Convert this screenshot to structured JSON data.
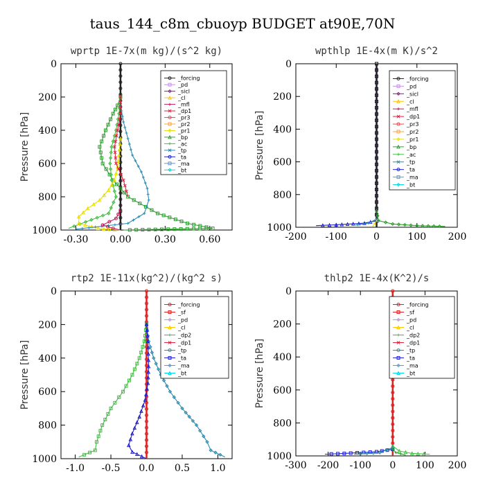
{
  "title": "taus_144_c8m_cbuoyp  BUDGET at90E,70N",
  "colors": {
    "forcing": "#222222",
    "pd": "#c490ea",
    "sicl": "#8a1a8a",
    "cl": "#ffc300",
    "mfl": "#c2185b",
    "dp1": "#e0203a",
    "pr3": "#ff4040",
    "pr2": "#ffa040",
    "pr1": "#e8e000",
    "bp": "#2e9e2e",
    "ac": "#40c040",
    "tp": "#2a8ab0",
    "ta": "#2020d0",
    "ma": "#5599dd",
    "bt": "#00d8e8",
    "sf": "#dd2020",
    "dp2": "#44bb44",
    "forcing_red": "#e02020"
  },
  "chart_data": [
    {
      "type": "line",
      "title": "wprtp   1E-7x(m kg)/(s^2 kg)",
      "ylabel": "Pressure [hPa]",
      "xlim": [
        -0.4,
        0.75
      ],
      "ylim": [
        1000,
        0
      ],
      "xticks": [
        -0.3,
        0.0,
        0.3,
        0.6
      ],
      "xticklabels": [
        "-0.30",
        "0.00",
        "0.30",
        "0.60"
      ],
      "yticks": [
        0,
        200,
        400,
        600,
        800,
        1000
      ],
      "yticklabels": [
        "0",
        "200",
        "400",
        "600",
        "800",
        "1000"
      ],
      "legend_position": "top-right",
      "legend": [
        "_forcing",
        "_pd",
        "_sicl",
        "_cl",
        "_mfl",
        "_dp1",
        "_pr3",
        "_pr2",
        "_pr1",
        "_bp",
        "_ac",
        "_tp",
        "_ta",
        "_ma",
        "_bt"
      ],
      "series": [
        {
          "name": "_forcing",
          "color": "forcing",
          "x": [
            0.0,
            0.0
          ],
          "y": [
            0,
            1000
          ]
        },
        {
          "name": "_ac",
          "color": "bp",
          "x": [
            0.0,
            -0.02,
            -0.05,
            -0.1,
            -0.14,
            -0.12,
            -0.05,
            0.05,
            0.25,
            0.45,
            0.62,
            0.02
          ],
          "y": [
            200,
            250,
            300,
            400,
            500,
            600,
            700,
            800,
            900,
            960,
            990,
            1000
          ]
        },
        {
          "name": "_bp",
          "color": "ac",
          "x": [
            0.0,
            -0.01,
            -0.03,
            -0.06,
            -0.07,
            -0.06,
            -0.03,
            -0.08,
            -0.35
          ],
          "y": [
            200,
            300,
            400,
            500,
            600,
            700,
            800,
            900,
            990
          ]
        },
        {
          "name": "_pr1",
          "color": "pr1",
          "x": [
            0.0,
            -0.01,
            -0.02,
            -0.04,
            -0.08,
            -0.14,
            -0.22,
            -0.28,
            -0.28,
            -0.15,
            0.0
          ],
          "y": [
            450,
            550,
            620,
            700,
            760,
            820,
            870,
            920,
            960,
            990,
            1000
          ]
        },
        {
          "name": "_tp",
          "color": "tp",
          "x": [
            0.0,
            0.02,
            0.05,
            0.08,
            0.14,
            0.18,
            0.19,
            0.16,
            0.05,
            -0.3
          ],
          "y": [
            250,
            350,
            450,
            550,
            650,
            750,
            820,
            900,
            960,
            995
          ]
        },
        {
          "name": "_dp1",
          "color": "dp1",
          "x": [
            0.0,
            0.0,
            -0.02,
            -0.04,
            -0.03,
            0.02,
            0.05
          ],
          "y": [
            200,
            300,
            400,
            500,
            600,
            700,
            800
          ]
        },
        {
          "name": "_mfl",
          "color": "mfl",
          "x": [
            0.0,
            -0.03,
            -0.12,
            -0.05,
            0.0
          ],
          "y": [
            880,
            930,
            970,
            990,
            1000
          ]
        }
      ]
    },
    {
      "type": "line",
      "title": "wpthlp   1E-4x(m K)/s^2",
      "ylabel": "Pressure [hPa]",
      "xlim": [
        -200,
        200
      ],
      "ylim": [
        1000,
        0
      ],
      "xticks": [
        -200,
        -100,
        0,
        100,
        200
      ],
      "xticklabels": [
        "-200",
        "-100",
        "0",
        "100",
        "200"
      ],
      "yticks": [
        0,
        200,
        400,
        600,
        800,
        1000
      ],
      "yticklabels": [
        "0",
        "200",
        "400",
        "600",
        "800",
        "1000"
      ],
      "legend_position": "top-right",
      "legend": [
        "_forcing",
        "_pd",
        "_sicl",
        "_cl",
        "_mfl",
        "_dp1",
        "_pr3",
        "_pr2",
        "_pr1",
        "_bp",
        "_ac",
        "_tp",
        "_ta",
        "_ma",
        "_bt"
      ],
      "series": [
        {
          "name": "_pd",
          "color": "pd",
          "x": [
            0,
            0
          ],
          "y": [
            0,
            1000
          ]
        },
        {
          "name": "_forcing",
          "color": "forcing",
          "x": [
            0,
            0
          ],
          "y": [
            0,
            1000
          ]
        },
        {
          "name": "_bp",
          "color": "bp",
          "x": [
            0,
            5,
            40,
            100,
            170
          ],
          "y": [
            900,
            960,
            980,
            990,
            995
          ]
        },
        {
          "name": "_ta",
          "color": "ta",
          "x": [
            0,
            -30,
            -100,
            -150
          ],
          "y": [
            960,
            975,
            985,
            990
          ]
        },
        {
          "name": "_tp",
          "color": "tp",
          "x": [
            0,
            -20,
            -60
          ],
          "y": [
            950,
            975,
            990
          ]
        },
        {
          "name": "_pr1",
          "color": "pr1",
          "x": [
            0,
            -5,
            -10
          ],
          "y": [
            960,
            980,
            995
          ]
        }
      ]
    },
    {
      "type": "line",
      "title": "rtp2   1E-11x(kg^2)/(kg^2 s)",
      "ylabel": "Pressure [hPa]",
      "xlim": [
        -1.2,
        1.2
      ],
      "ylim": [
        1000,
        0
      ],
      "xticks": [
        -1.0,
        -0.5,
        0.0,
        0.5,
        1.0
      ],
      "xticklabels": [
        "-1.0",
        "-0.5",
        "0.0",
        "0.5",
        "1.0"
      ],
      "yticks": [
        0,
        200,
        400,
        600,
        800,
        1000
      ],
      "yticklabels": [
        "0",
        "200",
        "400",
        "600",
        "800",
        "1000"
      ],
      "legend_position": "top-right",
      "legend": [
        "_forcing",
        "_sf",
        "_pd",
        "_cl",
        "_dp2",
        "_dp1",
        "_tp",
        "_ta",
        "_ma",
        "_bt"
      ],
      "series": [
        {
          "name": "_forcing",
          "color": "forcing_red",
          "x": [
            0.0,
            0.0
          ],
          "y": [
            0,
            1000
          ]
        },
        {
          "name": "_dp2",
          "color": "ac",
          "x": [
            0.0,
            -0.03,
            -0.1,
            -0.2,
            -0.33,
            -0.5,
            -0.62,
            -0.7,
            -0.72,
            -0.95
          ],
          "y": [
            200,
            300,
            400,
            500,
            600,
            700,
            800,
            900,
            950,
            990
          ]
        },
        {
          "name": "_tp",
          "color": "tp",
          "x": [
            0.0,
            0.03,
            0.1,
            0.2,
            0.33,
            0.5,
            0.7,
            0.85,
            0.9,
            1.1
          ],
          "y": [
            200,
            300,
            400,
            500,
            600,
            700,
            800,
            900,
            950,
            990
          ]
        },
        {
          "name": "_ta",
          "color": "ta",
          "x": [
            0.0,
            0.02,
            0.03,
            0.02,
            -0.02,
            -0.1,
            -0.2,
            -0.25,
            -0.2,
            0.0
          ],
          "y": [
            200,
            300,
            450,
            550,
            650,
            750,
            850,
            920,
            960,
            1000
          ]
        }
      ]
    },
    {
      "type": "line",
      "title": "thlp2   1E-4x(K^2)/s",
      "ylabel": "Pressure [hPa]",
      "xlim": [
        -300,
        200
      ],
      "ylim": [
        1000,
        0
      ],
      "xticks": [
        -300,
        -200,
        -100,
        0,
        100,
        200
      ],
      "xticklabels": [
        "-300",
        "-200",
        "-100",
        "0",
        "100",
        "200"
      ],
      "yticks": [
        0,
        200,
        400,
        600,
        800,
        1000
      ],
      "yticklabels": [
        "0",
        "200",
        "400",
        "600",
        "800",
        "1000"
      ],
      "legend_position": "top-right",
      "legend": [
        "_forcing",
        "_sf",
        "_pd",
        "_cl",
        "_dp2",
        "_dp1",
        "_tp",
        "_ta",
        "_ma",
        "_bt"
      ],
      "series": [
        {
          "name": "_forcing",
          "color": "forcing_red",
          "x": [
            0,
            0
          ],
          "y": [
            0,
            1000
          ]
        },
        {
          "name": "_ta",
          "color": "ta",
          "x": [
            0,
            -50,
            -150,
            -210
          ],
          "y": [
            960,
            975,
            985,
            990
          ]
        },
        {
          "name": "_tp",
          "color": "tp",
          "x": [
            0,
            -40,
            -120
          ],
          "y": [
            950,
            980,
            990
          ]
        },
        {
          "name": "_dp2",
          "color": "ac",
          "x": [
            0,
            20,
            60,
            115
          ],
          "y": [
            940,
            970,
            985,
            990
          ]
        },
        {
          "name": "_dp1",
          "color": "bp",
          "x": [
            0,
            10,
            40
          ],
          "y": [
            960,
            980,
            995
          ]
        }
      ]
    }
  ]
}
